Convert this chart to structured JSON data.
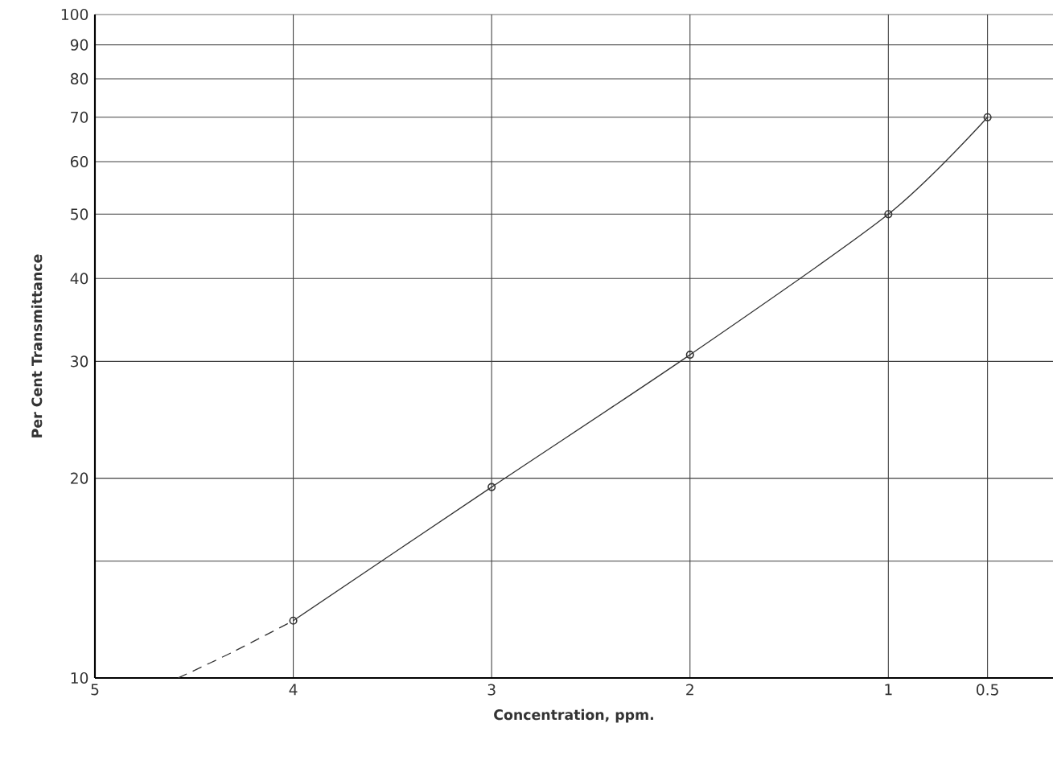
{
  "chart_data": {
    "type": "line",
    "xlabel": "Concentration, ppm.",
    "ylabel": "Per Cent Transmittance",
    "log": "y",
    "grid": true,
    "xlim": [
      5,
      0.17
    ],
    "xticks": [
      5,
      4,
      3,
      2,
      1,
      0.5
    ],
    "ylim": [
      10,
      100
    ],
    "yticks": [
      10,
      {
        "value": 15,
        "label": null
      },
      20,
      30,
      40,
      50,
      60,
      70,
      80,
      90,
      100
    ],
    "series": [
      {
        "color": "#333333",
        "x": [
          4,
          3,
          2,
          1,
          0.5
        ],
        "values": [
          12.2,
          19.4,
          30.7,
          50,
          70
        ],
        "marker": "circle",
        "line_style": "solid"
      },
      {
        "color": "#333333",
        "x": [
          4.58,
          4.3,
          4
        ],
        "values": [
          10,
          10.96,
          12.2
        ],
        "marker": "none",
        "line_style": "dashed"
      }
    ]
  }
}
